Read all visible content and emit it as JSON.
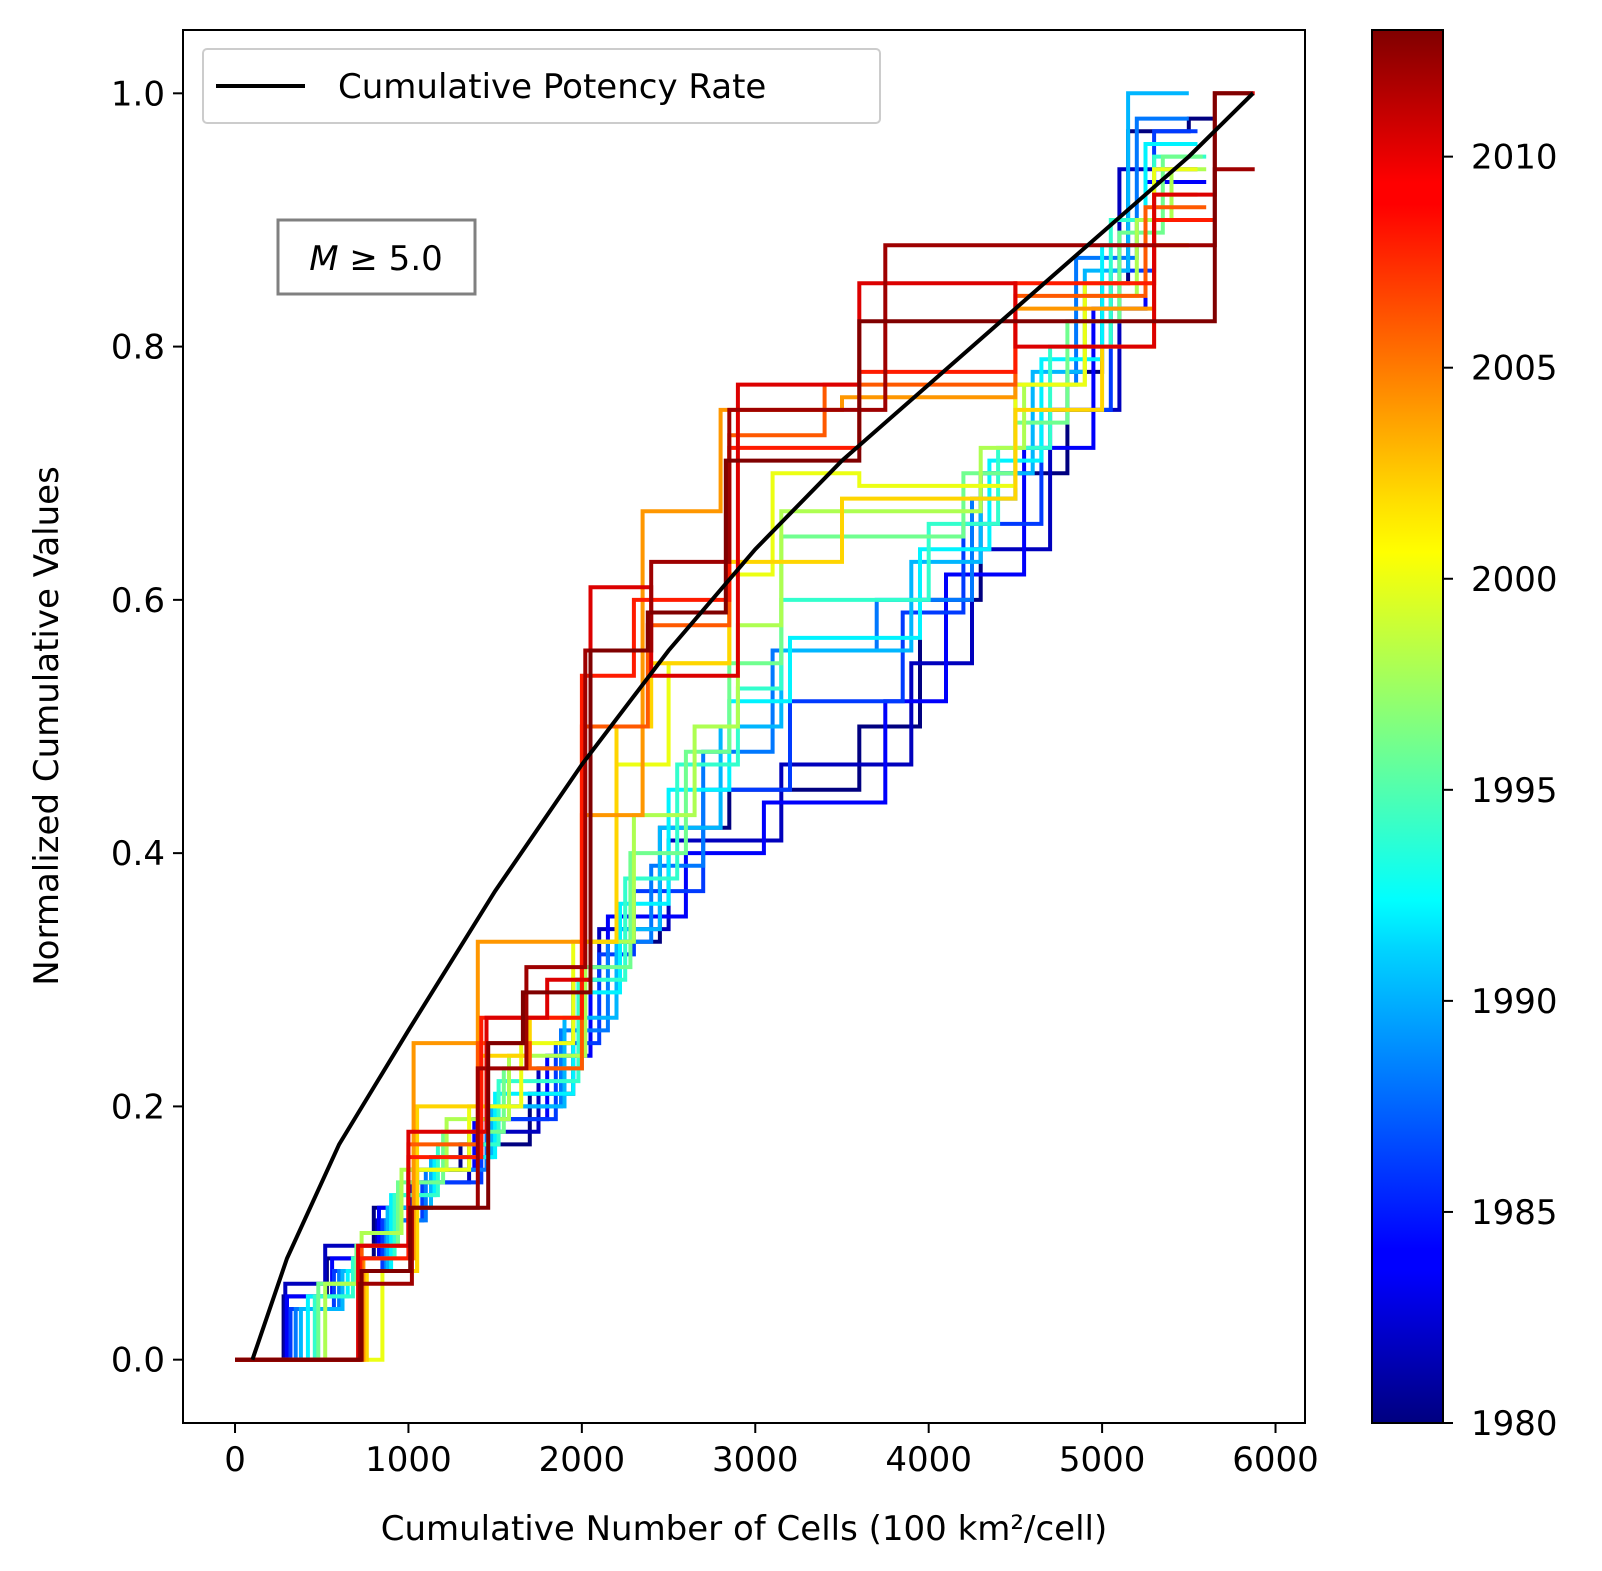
{
  "chart_data": {
    "type": "line",
    "xlabel": "Cumulative Number of Cells (100 km²/cell)",
    "ylabel": "Normalized Cumulative Values",
    "xlim": [
      -300,
      6170
    ],
    "ylim": [
      -0.05,
      1.05
    ],
    "xticks": [
      0,
      1000,
      2000,
      3000,
      4000,
      5000,
      6000
    ],
    "xtick_labels": [
      "0",
      "1000",
      "2000",
      "3000",
      "4000",
      "5000",
      "6000"
    ],
    "yticks": [
      0.0,
      0.2,
      0.4,
      0.6,
      0.8,
      1.0
    ],
    "ytick_labels": [
      "0.0",
      "0.2",
      "0.4",
      "0.6",
      "0.8",
      "1.0"
    ],
    "legend": {
      "position": "upper-left",
      "entries": [
        {
          "label": "Cumulative Potency Rate",
          "color": "#000000"
        }
      ]
    },
    "annotation": {
      "prefix": "M",
      "text": " ≥ 5.0"
    },
    "colorbar": {
      "colormap": "jet",
      "range": [
        1980,
        2013
      ],
      "ticks": [
        1980,
        1985,
        1990,
        1995,
        2000,
        2005,
        2010
      ],
      "tick_labels": [
        "1980",
        "1985",
        "1990",
        "1995",
        "2000",
        "2005",
        "2010"
      ]
    },
    "reference_curve": {
      "name": "Cumulative Potency Rate",
      "color": "#000000",
      "x": [
        100,
        300,
        600,
        1000,
        1500,
        2000,
        2500,
        3000,
        3500,
        4000,
        4500,
        5000,
        5500,
        5870
      ],
      "y": [
        0.0,
        0.08,
        0.17,
        0.26,
        0.37,
        0.47,
        0.56,
        0.64,
        0.71,
        0.77,
        0.83,
        0.89,
        0.95,
        1.0
      ]
    },
    "series": [
      {
        "year": 1980,
        "x": [
          0,
          280,
          280,
          530,
          530,
          800,
          800,
          1000,
          1000,
          1300,
          1300,
          1700,
          1700,
          1950,
          1950,
          2050,
          2050,
          2450,
          2450,
          2850,
          2850,
          3600,
          3600,
          3950,
          3950,
          4300,
          4300,
          4800,
          4800,
          5000,
          5000,
          5150,
          5150,
          5500,
          5500,
          5650
        ],
        "y": [
          0,
          0,
          0.05,
          0.05,
          0.08,
          0.08,
          0.12,
          0.12,
          0.15,
          0.15,
          0.17,
          0.17,
          0.21,
          0.21,
          0.3,
          0.3,
          0.33,
          0.33,
          0.42,
          0.42,
          0.45,
          0.45,
          0.5,
          0.5,
          0.6,
          0.6,
          0.7,
          0.7,
          0.78,
          0.78,
          0.85,
          0.85,
          0.97,
          0.97,
          0.98,
          0.98
        ]
      },
      {
        "year": 1982,
        "x": [
          0,
          290,
          290,
          520,
          520,
          820,
          820,
          1020,
          1020,
          1350,
          1350,
          1750,
          1750,
          2000,
          2000,
          2100,
          2100,
          2500,
          2500,
          3150,
          3150,
          3900,
          3900,
          4250,
          4250,
          4700,
          4700,
          5100,
          5100,
          5550
        ],
        "y": [
          0,
          0,
          0.06,
          0.06,
          0.09,
          0.09,
          0.11,
          0.11,
          0.14,
          0.14,
          0.18,
          0.18,
          0.23,
          0.23,
          0.3,
          0.3,
          0.34,
          0.34,
          0.41,
          0.41,
          0.47,
          0.47,
          0.55,
          0.55,
          0.64,
          0.64,
          0.75,
          0.75,
          0.94,
          0.94
        ]
      },
      {
        "year": 1984,
        "x": [
          0,
          300,
          300,
          560,
          560,
          830,
          830,
          1050,
          1050,
          1380,
          1380,
          1800,
          1800,
          2050,
          2050,
          2150,
          2150,
          2600,
          2600,
          3050,
          3050,
          3750,
          3750,
          4100,
          4100,
          4550,
          4550,
          4950,
          4950,
          5250,
          5250,
          5600
        ],
        "y": [
          0,
          0,
          0.05,
          0.05,
          0.08,
          0.08,
          0.12,
          0.12,
          0.15,
          0.15,
          0.19,
          0.19,
          0.24,
          0.24,
          0.31,
          0.31,
          0.35,
          0.35,
          0.4,
          0.4,
          0.44,
          0.44,
          0.52,
          0.52,
          0.62,
          0.62,
          0.72,
          0.72,
          0.83,
          0.83,
          0.93,
          0.93
        ]
      },
      {
        "year": 1986,
        "x": [
          0,
          320,
          320,
          570,
          570,
          850,
          850,
          1080,
          1080,
          1420,
          1420,
          1850,
          1850,
          2100,
          2100,
          2300,
          2300,
          2700,
          2700,
          3200,
          3200,
          3850,
          3850,
          4200,
          4200,
          4650,
          4650,
          5050,
          5050,
          5300,
          5300,
          5550
        ],
        "y": [
          0,
          0,
          0.04,
          0.04,
          0.07,
          0.07,
          0.11,
          0.11,
          0.14,
          0.14,
          0.19,
          0.19,
          0.25,
          0.25,
          0.32,
          0.32,
          0.37,
          0.37,
          0.45,
          0.45,
          0.52,
          0.52,
          0.59,
          0.59,
          0.66,
          0.66,
          0.75,
          0.75,
          0.86,
          0.86,
          0.97,
          0.97
        ]
      },
      {
        "year": 1988,
        "x": [
          0,
          350,
          350,
          600,
          600,
          870,
          870,
          1100,
          1100,
          1450,
          1450,
          1880,
          1880,
          2150,
          2150,
          2400,
          2400,
          2700,
          2700,
          3100,
          3100,
          3700,
          3700,
          4250,
          4250,
          4500,
          4500,
          4850,
          4850,
          5200,
          5200,
          5500
        ],
        "y": [
          0,
          0,
          0.04,
          0.04,
          0.07,
          0.07,
          0.11,
          0.11,
          0.15,
          0.15,
          0.2,
          0.2,
          0.26,
          0.26,
          0.33,
          0.33,
          0.39,
          0.39,
          0.48,
          0.48,
          0.56,
          0.56,
          0.6,
          0.6,
          0.68,
          0.68,
          0.77,
          0.77,
          0.87,
          0.87,
          0.98,
          0.98
        ]
      },
      {
        "year": 1990,
        "x": [
          0,
          380,
          380,
          620,
          620,
          880,
          880,
          1130,
          1130,
          1480,
          1480,
          1900,
          1900,
          2200,
          2200,
          2450,
          2450,
          2800,
          2800,
          3150,
          3150,
          3900,
          3900,
          4300,
          4300,
          4600,
          4600,
          4900,
          4900,
          5150,
          5150,
          5500
        ],
        "y": [
          0,
          0,
          0.04,
          0.04,
          0.07,
          0.07,
          0.12,
          0.12,
          0.16,
          0.16,
          0.2,
          0.2,
          0.27,
          0.27,
          0.34,
          0.34,
          0.42,
          0.42,
          0.5,
          0.5,
          0.56,
          0.56,
          0.63,
          0.63,
          0.7,
          0.7,
          0.78,
          0.78,
          0.86,
          0.86,
          1.0,
          1.0
        ]
      },
      {
        "year": 1992,
        "x": [
          0,
          420,
          420,
          650,
          650,
          900,
          900,
          1150,
          1150,
          1500,
          1500,
          1950,
          1950,
          2220,
          2220,
          2500,
          2500,
          2850,
          2850,
          3200,
          3200,
          3950,
          3950,
          4350,
          4350,
          4650,
          4650,
          5000,
          5000,
          5250,
          5250,
          5550
        ],
        "y": [
          0,
          0,
          0.05,
          0.05,
          0.07,
          0.07,
          0.13,
          0.13,
          0.16,
          0.16,
          0.21,
          0.21,
          0.29,
          0.29,
          0.36,
          0.36,
          0.45,
          0.45,
          0.52,
          0.52,
          0.57,
          0.57,
          0.64,
          0.64,
          0.71,
          0.71,
          0.79,
          0.79,
          0.88,
          0.88,
          0.96,
          0.96
        ]
      },
      {
        "year": 1994,
        "x": [
          0,
          460,
          460,
          680,
          680,
          920,
          920,
          1170,
          1170,
          1520,
          1520,
          1980,
          1980,
          2250,
          2250,
          2550,
          2550,
          2900,
          2900,
          3150,
          3150,
          4000,
          4000,
          4400,
          4400,
          4700,
          4700,
          5050,
          5050,
          5300,
          5300,
          5600
        ],
        "y": [
          0,
          0,
          0.05,
          0.05,
          0.08,
          0.08,
          0.13,
          0.13,
          0.17,
          0.17,
          0.22,
          0.22,
          0.3,
          0.3,
          0.38,
          0.38,
          0.47,
          0.47,
          0.53,
          0.53,
          0.6,
          0.6,
          0.66,
          0.66,
          0.72,
          0.72,
          0.8,
          0.8,
          0.9,
          0.9,
          0.95,
          0.95
        ]
      },
      {
        "year": 1996,
        "x": [
          0,
          480,
          480,
          700,
          700,
          940,
          940,
          1200,
          1200,
          1550,
          1550,
          2000,
          2000,
          2280,
          2280,
          2600,
          2600,
          2850,
          2850,
          3150,
          3150,
          4200,
          4200,
          4500,
          4500,
          4800,
          4800,
          5100,
          5100,
          5350,
          5350,
          5580
        ],
        "y": [
          0,
          0,
          0.06,
          0.06,
          0.09,
          0.09,
          0.14,
          0.14,
          0.18,
          0.18,
          0.23,
          0.23,
          0.31,
          0.31,
          0.4,
          0.4,
          0.48,
          0.48,
          0.55,
          0.55,
          0.65,
          0.65,
          0.7,
          0.7,
          0.74,
          0.74,
          0.82,
          0.82,
          0.89,
          0.89,
          0.95,
          0.95
        ]
      },
      {
        "year": 1998,
        "x": [
          0,
          520,
          520,
          730,
          730,
          960,
          960,
          1220,
          1220,
          1580,
          1580,
          2020,
          2020,
          2300,
          2300,
          2650,
          2650,
          2900,
          2900,
          3150,
          3150,
          4300,
          4300,
          4550,
          4550,
          4900,
          4900,
          5200,
          5200,
          5400,
          5400,
          5600
        ],
        "y": [
          0,
          0,
          0.06,
          0.06,
          0.1,
          0.1,
          0.15,
          0.15,
          0.19,
          0.19,
          0.24,
          0.24,
          0.33,
          0.33,
          0.43,
          0.43,
          0.5,
          0.5,
          0.58,
          0.58,
          0.67,
          0.67,
          0.72,
          0.72,
          0.77,
          0.77,
          0.84,
          0.84,
          0.9,
          0.9,
          0.94,
          0.94
        ]
      },
      {
        "year": 2000,
        "x": [
          0,
          850,
          850,
          1050,
          1050,
          1350,
          1350,
          1650,
          1650,
          1950,
          1950,
          2200,
          2200,
          2500,
          2500,
          2850,
          2850,
          3100,
          3100,
          3600,
          3600,
          4500,
          4500,
          4900,
          4900,
          5300,
          5300,
          5550
        ],
        "y": [
          0,
          0,
          0.07,
          0.07,
          0.15,
          0.15,
          0.2,
          0.2,
          0.25,
          0.25,
          0.33,
          0.33,
          0.47,
          0.47,
          0.55,
          0.55,
          0.62,
          0.62,
          0.7,
          0.7,
          0.69,
          0.69,
          0.77,
          0.77,
          0.85,
          0.85,
          0.94,
          0.94
        ]
      },
      {
        "year": 2002,
        "x": [
          0,
          760,
          760,
          1050,
          1050,
          1420,
          1420,
          1700,
          1700,
          2000,
          2000,
          2200,
          2200,
          2400,
          2400,
          2850,
          2850,
          3500,
          3500,
          4500,
          4500,
          5000,
          5000,
          5300,
          5300,
          5500
        ],
        "y": [
          0,
          0,
          0.07,
          0.07,
          0.2,
          0.2,
          0.24,
          0.24,
          0.27,
          0.27,
          0.33,
          0.33,
          0.5,
          0.5,
          0.55,
          0.55,
          0.63,
          0.63,
          0.68,
          0.68,
          0.75,
          0.75,
          0.8,
          0.8,
          0.88,
          0.88
        ]
      },
      {
        "year": 2004,
        "x": [
          0,
          740,
          740,
          1030,
          1030,
          1400,
          1400,
          1700,
          1700,
          2000,
          2000,
          2350,
          2350,
          2800,
          2800,
          3500,
          3500,
          4500,
          4500,
          5300,
          5300,
          5550
        ],
        "y": [
          0,
          0,
          0.08,
          0.08,
          0.25,
          0.25,
          0.33,
          0.33,
          0.33,
          0.33,
          0.43,
          0.43,
          0.67,
          0.67,
          0.75,
          0.75,
          0.76,
          0.76,
          0.83,
          0.83,
          0.92,
          0.92
        ]
      },
      {
        "year": 2006,
        "x": [
          0,
          730,
          730,
          1000,
          1000,
          1400,
          1400,
          1700,
          1700,
          2000,
          2000,
          2380,
          2380,
          2850,
          2850,
          3400,
          3400,
          4500,
          4500,
          5250,
          5250,
          5600
        ],
        "y": [
          0,
          0,
          0.09,
          0.09,
          0.17,
          0.17,
          0.25,
          0.25,
          0.23,
          0.23,
          0.5,
          0.5,
          0.58,
          0.58,
          0.73,
          0.73,
          0.77,
          0.77,
          0.84,
          0.84,
          0.91,
          0.91
        ]
      },
      {
        "year": 2008,
        "x": [
          0,
          720,
          720,
          1000,
          1000,
          1420,
          1420,
          1750,
          1750,
          2000,
          2000,
          2300,
          2300,
          2850,
          2850,
          3600,
          3600,
          4500,
          4500,
          5300,
          5300,
          5650
        ],
        "y": [
          0,
          0,
          0.08,
          0.08,
          0.16,
          0.16,
          0.27,
          0.27,
          0.27,
          0.27,
          0.54,
          0.54,
          0.6,
          0.6,
          0.72,
          0.72,
          0.78,
          0.78,
          0.85,
          0.85,
          0.9,
          0.9
        ]
      },
      {
        "year": 2010,
        "x": [
          0,
          710,
          710,
          1000,
          1000,
          1450,
          1450,
          1800,
          1800,
          2050,
          2050,
          2400,
          2400,
          2900,
          2900,
          3600,
          3600,
          4500,
          4500,
          5300,
          5300,
          5650,
          5650,
          5880
        ],
        "y": [
          0,
          0,
          0.09,
          0.09,
          0.18,
          0.18,
          0.27,
          0.27,
          0.3,
          0.3,
          0.61,
          0.61,
          0.54,
          0.54,
          0.77,
          0.77,
          0.85,
          0.85,
          0.8,
          0.8,
          0.92,
          0.92,
          1.0,
          1.0
        ]
      },
      {
        "year": 2012,
        "x": [
          0,
          720,
          720,
          1020,
          1020,
          1400,
          1400,
          1680,
          1680,
          2020,
          2020,
          2400,
          2400,
          2850,
          2850,
          3750,
          3750,
          5650,
          5650,
          5880
        ],
        "y": [
          0,
          0,
          0.06,
          0.06,
          0.12,
          0.12,
          0.23,
          0.23,
          0.31,
          0.31,
          0.56,
          0.56,
          0.63,
          0.63,
          0.75,
          0.75,
          0.88,
          0.88,
          0.94,
          0.94
        ]
      },
      {
        "year": 2013,
        "x": [
          0,
          730,
          730,
          1010,
          1010,
          1460,
          1460,
          1660,
          1660,
          2050,
          2050,
          2380,
          2380,
          2830,
          2830,
          3600,
          3600,
          5650,
          5650,
          5870
        ],
        "y": [
          0,
          0,
          0.07,
          0.07,
          0.12,
          0.12,
          0.25,
          0.25,
          0.29,
          0.29,
          0.56,
          0.56,
          0.59,
          0.59,
          0.71,
          0.71,
          0.82,
          0.82,
          1.0,
          1.0
        ]
      }
    ]
  }
}
